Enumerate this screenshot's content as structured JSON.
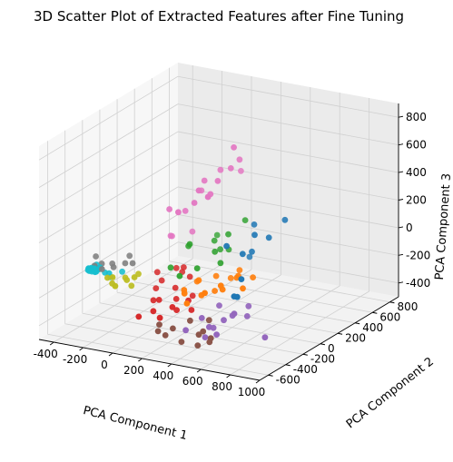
{
  "chart_data": {
    "type": "scatter",
    "projection": "3d",
    "title": "3D Scatter Plot of Extracted Features after Fine Tuning",
    "xlabel": "PCA Component 1",
    "ylabel": "PCA Component 2",
    "zlabel": "PCA Component 3",
    "xlim": [
      -500,
      1000
    ],
    "ylim": [
      -700,
      900
    ],
    "zlim": [
      -500,
      900
    ],
    "xticks": [
      "-400",
      "-200",
      "0",
      "200",
      "400",
      "600",
      "800",
      "1000"
    ],
    "yticks": [
      "-600",
      "-400",
      "-200",
      "0",
      "200",
      "400",
      "600",
      "800"
    ],
    "zticks": [
      "-400",
      "-200",
      "0",
      "200",
      "400",
      "600",
      "800"
    ],
    "grid": true,
    "legend": "none",
    "series": [
      {
        "color": "#1f77b4",
        "points": [
          [
            520,
            50,
            250
          ],
          [
            480,
            -200,
            180
          ],
          [
            650,
            0,
            200
          ],
          [
            600,
            -80,
            240
          ],
          [
            560,
            -150,
            120
          ],
          [
            620,
            -350,
            -100
          ],
          [
            700,
            -450,
            -50
          ],
          [
            540,
            -10,
            80
          ],
          [
            430,
            150,
            -40
          ],
          [
            640,
            -300,
            10
          ],
          [
            700,
            100,
            300
          ]
        ]
      },
      {
        "color": "#ff7f0e",
        "points": [
          [
            280,
            -350,
            -120
          ],
          [
            320,
            -250,
            -80
          ],
          [
            350,
            -100,
            -100
          ],
          [
            380,
            -320,
            -150
          ],
          [
            400,
            -200,
            -160
          ],
          [
            420,
            -50,
            -120
          ],
          [
            450,
            -400,
            -90
          ],
          [
            500,
            -280,
            -100
          ],
          [
            520,
            -150,
            -60
          ],
          [
            530,
            -350,
            -40
          ],
          [
            560,
            -200,
            -20
          ],
          [
            600,
            -100,
            -60
          ],
          [
            300,
            -380,
            -130
          ],
          [
            250,
            -150,
            -140
          ],
          [
            340,
            -420,
            -180
          ],
          [
            620,
            -250,
            -80
          ],
          [
            480,
            -50,
            -50
          ]
        ]
      },
      {
        "color": "#2ca02c",
        "points": [
          [
            150,
            -80,
            70
          ],
          [
            200,
            -150,
            120
          ],
          [
            250,
            50,
            80
          ],
          [
            300,
            -30,
            40
          ],
          [
            330,
            80,
            20
          ],
          [
            280,
            -200,
            -20
          ],
          [
            220,
            -300,
            -50
          ],
          [
            100,
            -200,
            -50
          ],
          [
            380,
            -100,
            0
          ],
          [
            350,
            40,
            150
          ],
          [
            400,
            150,
            220
          ],
          [
            260,
            100,
            0
          ],
          [
            180,
            200,
            50
          ]
        ]
      },
      {
        "color": "#d62728",
        "points": [
          [
            -50,
            -100,
            -150
          ],
          [
            0,
            -200,
            -220
          ],
          [
            50,
            -50,
            -120
          ],
          [
            80,
            -300,
            -250
          ],
          [
            120,
            -180,
            -200
          ],
          [
            160,
            -80,
            -150
          ],
          [
            200,
            -350,
            -260
          ],
          [
            250,
            -250,
            -240
          ],
          [
            300,
            -300,
            -280
          ],
          [
            60,
            -500,
            -300
          ],
          [
            30,
            -280,
            -270
          ],
          [
            100,
            -400,
            -290
          ],
          [
            150,
            -220,
            -260
          ],
          [
            10,
            -150,
            -180
          ],
          [
            130,
            -100,
            -80
          ],
          [
            180,
            -460,
            -300
          ],
          [
            220,
            -150,
            -250
          ],
          [
            90,
            -50,
            -140
          ],
          [
            200,
            -300,
            -300
          ]
        ]
      },
      {
        "color": "#9467bd",
        "points": [
          [
            400,
            -350,
            -300
          ],
          [
            430,
            -200,
            -260
          ],
          [
            480,
            -400,
            -330
          ],
          [
            520,
            -300,
            -310
          ],
          [
            560,
            -450,
            -350
          ],
          [
            600,
            -150,
            -250
          ],
          [
            350,
            -450,
            -360
          ],
          [
            450,
            -300,
            -380
          ],
          [
            500,
            -480,
            -370
          ],
          [
            550,
            -250,
            -290
          ],
          [
            800,
            -300,
            -380
          ],
          [
            650,
            -400,
            -200
          ],
          [
            620,
            -200,
            -300
          ]
        ]
      },
      {
        "color": "#8c564b",
        "points": [
          [
            200,
            -500,
            -330
          ],
          [
            300,
            -600,
            -350
          ],
          [
            350,
            -400,
            -310
          ],
          [
            420,
            -300,
            -330
          ],
          [
            480,
            -520,
            -340
          ],
          [
            550,
            -500,
            -360
          ],
          [
            600,
            -600,
            -340
          ],
          [
            250,
            -600,
            -330
          ],
          [
            450,
            -420,
            -360
          ],
          [
            520,
            -600,
            -380
          ],
          [
            380,
            -550,
            -400
          ],
          [
            280,
            -480,
            -350
          ]
        ]
      },
      {
        "color": "#e377c2",
        "points": [
          [
            150,
            -300,
            420
          ],
          [
            200,
            -200,
            380
          ],
          [
            250,
            -100,
            500
          ],
          [
            300,
            -150,
            600
          ],
          [
            350,
            -50,
            650
          ],
          [
            400,
            -250,
            560
          ],
          [
            450,
            -100,
            700
          ],
          [
            500,
            -150,
            880
          ],
          [
            480,
            -50,
            750
          ],
          [
            320,
            -300,
            500
          ],
          [
            380,
            -350,
            620
          ],
          [
            420,
            -200,
            640
          ],
          [
            200,
            -120,
            200
          ],
          [
            100,
            -200,
            180
          ],
          [
            50,
            -100,
            130
          ],
          [
            430,
            50,
            620
          ],
          [
            270,
            -400,
            460
          ],
          [
            460,
            -380,
            600
          ]
        ]
      },
      {
        "color": "#7f7f7f",
        "points": [
          [
            -150,
            -300,
            -30
          ],
          [
            -200,
            -350,
            -50
          ],
          [
            -250,
            -280,
            -60
          ],
          [
            -300,
            -400,
            -40
          ],
          [
            -180,
            -200,
            -20
          ],
          [
            -220,
            -450,
            -30
          ],
          [
            -100,
            -300,
            -20
          ],
          [
            -350,
            -300,
            -20
          ],
          [
            -280,
            -350,
            -40
          ]
        ]
      },
      {
        "color": "#bcbd22",
        "points": [
          [
            -80,
            -400,
            -100
          ],
          [
            -120,
            -350,
            -110
          ],
          [
            -60,
            -300,
            -90
          ],
          [
            -150,
            -450,
            -120
          ],
          [
            -100,
            -500,
            -110
          ],
          [
            -200,
            -420,
            -100
          ],
          [
            -40,
            -380,
            -80
          ],
          [
            -90,
            -330,
            -170
          ],
          [
            -130,
            -480,
            -60
          ]
        ]
      },
      {
        "color": "#17becf",
        "points": [
          [
            -300,
            -400,
            -60
          ],
          [
            -320,
            -380,
            -70
          ],
          [
            -310,
            -420,
            -50
          ],
          [
            -290,
            -390,
            -60
          ],
          [
            -330,
            -410,
            -80
          ],
          [
            -300,
            -430,
            -70
          ],
          [
            -280,
            -370,
            -60
          ],
          [
            -310,
            -360,
            -50
          ],
          [
            -320,
            -440,
            -60
          ],
          [
            -290,
            -410,
            -80
          ],
          [
            -300,
            -380,
            -90
          ],
          [
            -340,
            -400,
            -70
          ],
          [
            -270,
            -400,
            -60
          ],
          [
            -310,
            -400,
            -70
          ],
          [
            -295,
            -415,
            -55
          ],
          [
            -315,
            -395,
            -65
          ],
          [
            -305,
            -385,
            -75
          ],
          [
            -285,
            -425,
            -65
          ],
          [
            -325,
            -425,
            -55
          ],
          [
            -300,
            -395,
            -50
          ],
          [
            -290,
            -365,
            -70
          ],
          [
            -320,
            -370,
            -80
          ],
          [
            -250,
            -300,
            -150
          ],
          [
            -200,
            -250,
            -120
          ],
          [
            -230,
            -350,
            -100
          ],
          [
            -270,
            -330,
            -110
          ]
        ]
      }
    ]
  }
}
